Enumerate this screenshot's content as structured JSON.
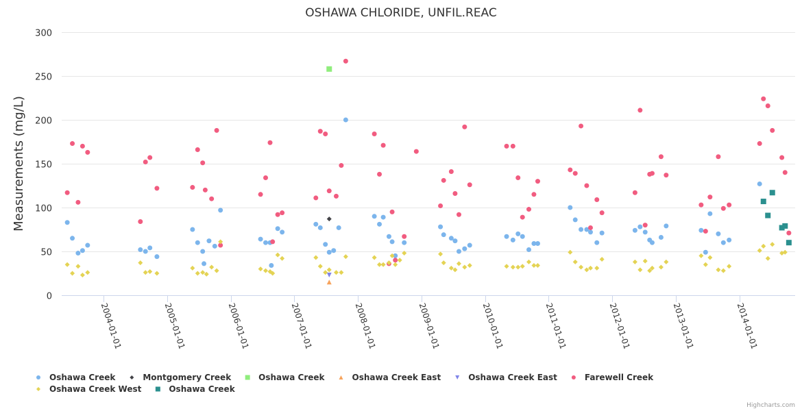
{
  "chart_data": {
    "type": "scatter",
    "title": "OSHAWA CHLORIDE, UNFIL.REAC",
    "xlabel": "",
    "ylabel": "Measurements (mg/L)",
    "ylim": [
      0,
      300
    ],
    "xlim": [
      2003.35,
      2014.9
    ],
    "yticks": [
      "0",
      "50",
      "100",
      "150",
      "200",
      "250",
      "300"
    ],
    "ytick_values": [
      0,
      50,
      100,
      150,
      200,
      250,
      300
    ],
    "xticks": [
      "2004-01-01",
      "2005-01-01",
      "2006-01-01",
      "2007-01-01",
      "2008-01-01",
      "2009-01-01",
      "2010-01-01",
      "2011-01-01",
      "2012-01-01",
      "2013-01-01",
      "2014-01-01"
    ],
    "xtick_values": [
      2004,
      2005,
      2006,
      2007,
      2008,
      2009,
      2010,
      2011,
      2012,
      2013,
      2014
    ],
    "grid": true,
    "legend_position": "bottom",
    "credits": "Highcharts.com",
    "series": [
      {
        "name": "Oshawa Creek",
        "color": "#7cb5ec",
        "marker": "circle",
        "points": [
          [
            2003.43,
            83
          ],
          [
            2003.51,
            65
          ],
          [
            2003.6,
            48
          ],
          [
            2003.67,
            51
          ],
          [
            2003.75,
            57
          ],
          [
            2004.58,
            52
          ],
          [
            2004.66,
            50
          ],
          [
            2004.73,
            54
          ],
          [
            2004.84,
            44
          ],
          [
            2005.4,
            75
          ],
          [
            2005.48,
            60
          ],
          [
            2005.56,
            50
          ],
          [
            2005.58,
            36
          ],
          [
            2005.66,
            62
          ],
          [
            2005.75,
            56
          ],
          [
            2005.84,
            97
          ],
          [
            2006.47,
            64
          ],
          [
            2006.55,
            60
          ],
          [
            2006.62,
            60
          ],
          [
            2006.64,
            34
          ],
          [
            2006.74,
            76
          ],
          [
            2006.81,
            72
          ],
          [
            2007.34,
            81
          ],
          [
            2007.41,
            77
          ],
          [
            2007.49,
            58
          ],
          [
            2007.55,
            49
          ],
          [
            2007.62,
            51
          ],
          [
            2007.7,
            77
          ],
          [
            2007.81,
            200
          ],
          [
            2008.26,
            90
          ],
          [
            2008.34,
            81
          ],
          [
            2008.4,
            89
          ],
          [
            2008.49,
            67
          ],
          [
            2008.54,
            61
          ],
          [
            2008.59,
            45
          ],
          [
            2008.73,
            60
          ],
          [
            2009.3,
            78
          ],
          [
            2009.35,
            69
          ],
          [
            2009.47,
            65
          ],
          [
            2009.53,
            62
          ],
          [
            2009.59,
            50
          ],
          [
            2009.68,
            53
          ],
          [
            2009.76,
            57
          ],
          [
            2010.34,
            67
          ],
          [
            2010.44,
            63
          ],
          [
            2010.52,
            70
          ],
          [
            2010.59,
            67
          ],
          [
            2010.69,
            52
          ],
          [
            2010.77,
            59
          ],
          [
            2010.83,
            59
          ],
          [
            2011.34,
            100
          ],
          [
            2011.42,
            86
          ],
          [
            2011.51,
            75
          ],
          [
            2011.6,
            75
          ],
          [
            2011.66,
            72
          ],
          [
            2011.76,
            60
          ],
          [
            2011.84,
            71
          ],
          [
            2012.36,
            74
          ],
          [
            2012.44,
            78
          ],
          [
            2012.52,
            72
          ],
          [
            2012.59,
            63
          ],
          [
            2012.63,
            60
          ],
          [
            2012.77,
            66
          ],
          [
            2012.85,
            79
          ],
          [
            2013.4,
            74
          ],
          [
            2013.47,
            49
          ],
          [
            2013.54,
            93
          ],
          [
            2013.67,
            70
          ],
          [
            2013.75,
            60
          ],
          [
            2013.84,
            63
          ],
          [
            2014.32,
            127
          ]
        ]
      },
      {
        "name": "Montgomery Creek",
        "color": "#434348",
        "marker": "diamond",
        "points": [
          [
            2007.55,
            87
          ]
        ]
      },
      {
        "name": "Oshawa Creek",
        "color": "#90ed7d",
        "marker": "square",
        "points": [
          [
            2007.55,
            258
          ]
        ]
      },
      {
        "name": "Oshawa Creek East",
        "color": "#f7a35c",
        "marker": "triangle",
        "points": [
          [
            2007.55,
            15
          ]
        ]
      },
      {
        "name": "Oshawa Creek East",
        "color": "#8085e9",
        "marker": "triangle-down",
        "points": [
          [
            2007.55,
            23
          ]
        ]
      },
      {
        "name": "Farewell Creek",
        "color": "#f15c80",
        "marker": "circle",
        "points": [
          [
            2003.43,
            117
          ],
          [
            2003.51,
            173
          ],
          [
            2003.6,
            106
          ],
          [
            2003.67,
            170
          ],
          [
            2003.75,
            163
          ],
          [
            2004.58,
            84
          ],
          [
            2004.66,
            152
          ],
          [
            2004.73,
            157
          ],
          [
            2004.84,
            122
          ],
          [
            2005.4,
            123
          ],
          [
            2005.48,
            166
          ],
          [
            2005.56,
            151
          ],
          [
            2005.6,
            120
          ],
          [
            2005.7,
            110
          ],
          [
            2005.78,
            188
          ],
          [
            2005.84,
            57
          ],
          [
            2006.47,
            115
          ],
          [
            2006.55,
            134
          ],
          [
            2006.62,
            174
          ],
          [
            2006.66,
            61
          ],
          [
            2006.74,
            92
          ],
          [
            2006.81,
            94
          ],
          [
            2007.34,
            111
          ],
          [
            2007.41,
            187
          ],
          [
            2007.49,
            184
          ],
          [
            2007.55,
            119
          ],
          [
            2007.66,
            113
          ],
          [
            2007.74,
            148
          ],
          [
            2007.81,
            267
          ],
          [
            2008.26,
            184
          ],
          [
            2008.34,
            138
          ],
          [
            2008.4,
            171
          ],
          [
            2008.49,
            36
          ],
          [
            2008.54,
            95
          ],
          [
            2008.59,
            40
          ],
          [
            2008.73,
            67
          ],
          [
            2008.92,
            164
          ],
          [
            2009.3,
            102
          ],
          [
            2009.35,
            131
          ],
          [
            2009.47,
            141
          ],
          [
            2009.53,
            116
          ],
          [
            2009.59,
            92
          ],
          [
            2009.68,
            192
          ],
          [
            2009.76,
            126
          ],
          [
            2010.34,
            170
          ],
          [
            2010.44,
            170
          ],
          [
            2010.52,
            134
          ],
          [
            2010.59,
            89
          ],
          [
            2010.69,
            98
          ],
          [
            2010.77,
            115
          ],
          [
            2010.83,
            130
          ],
          [
            2011.34,
            143
          ],
          [
            2011.42,
            139
          ],
          [
            2011.51,
            193
          ],
          [
            2011.6,
            125
          ],
          [
            2011.66,
            77
          ],
          [
            2011.76,
            109
          ],
          [
            2011.84,
            94
          ],
          [
            2012.36,
            117
          ],
          [
            2012.44,
            211
          ],
          [
            2012.52,
            80
          ],
          [
            2012.59,
            138
          ],
          [
            2012.63,
            139
          ],
          [
            2012.77,
            158
          ],
          [
            2012.85,
            137
          ],
          [
            2013.4,
            103
          ],
          [
            2013.47,
            73
          ],
          [
            2013.54,
            112
          ],
          [
            2013.67,
            158
          ],
          [
            2013.75,
            99
          ],
          [
            2013.84,
            103
          ],
          [
            2014.32,
            173
          ],
          [
            2014.38,
            224
          ],
          [
            2014.45,
            216
          ],
          [
            2014.52,
            188
          ],
          [
            2014.67,
            157
          ],
          [
            2014.72,
            140
          ],
          [
            2014.78,
            71
          ]
        ]
      },
      {
        "name": "Oshawa Creek West",
        "color": "#e4d354",
        "marker": "diamond",
        "points": [
          [
            2003.43,
            35
          ],
          [
            2003.51,
            25
          ],
          [
            2003.6,
            33
          ],
          [
            2003.67,
            23
          ],
          [
            2003.75,
            26
          ],
          [
            2004.58,
            37
          ],
          [
            2004.66,
            26
          ],
          [
            2004.73,
            27
          ],
          [
            2004.84,
            25
          ],
          [
            2005.4,
            31
          ],
          [
            2005.48,
            25
          ],
          [
            2005.56,
            26
          ],
          [
            2005.62,
            24
          ],
          [
            2005.7,
            32
          ],
          [
            2005.78,
            28
          ],
          [
            2005.84,
            61
          ],
          [
            2006.47,
            30
          ],
          [
            2006.55,
            28
          ],
          [
            2006.62,
            27
          ],
          [
            2006.66,
            25
          ],
          [
            2006.74,
            46
          ],
          [
            2006.81,
            42
          ],
          [
            2007.34,
            43
          ],
          [
            2007.41,
            33
          ],
          [
            2007.49,
            26
          ],
          [
            2007.55,
            29
          ],
          [
            2007.66,
            26
          ],
          [
            2007.74,
            26
          ],
          [
            2007.81,
            44
          ],
          [
            2008.26,
            43
          ],
          [
            2008.34,
            35
          ],
          [
            2008.4,
            35
          ],
          [
            2008.49,
            37
          ],
          [
            2008.54,
            45
          ],
          [
            2008.59,
            35
          ],
          [
            2008.66,
            40
          ],
          [
            2008.73,
            48
          ],
          [
            2009.3,
            47
          ],
          [
            2009.35,
            37
          ],
          [
            2009.47,
            31
          ],
          [
            2009.53,
            29
          ],
          [
            2009.59,
            36
          ],
          [
            2009.68,
            32
          ],
          [
            2009.76,
            34
          ],
          [
            2010.34,
            33
          ],
          [
            2010.44,
            32
          ],
          [
            2010.52,
            32
          ],
          [
            2010.59,
            33
          ],
          [
            2010.69,
            38
          ],
          [
            2010.77,
            34
          ],
          [
            2010.83,
            34
          ],
          [
            2011.34,
            49
          ],
          [
            2011.42,
            38
          ],
          [
            2011.51,
            32
          ],
          [
            2011.6,
            29
          ],
          [
            2011.66,
            31
          ],
          [
            2011.76,
            31
          ],
          [
            2011.84,
            41
          ],
          [
            2012.36,
            38
          ],
          [
            2012.44,
            29
          ],
          [
            2012.52,
            39
          ],
          [
            2012.59,
            28
          ],
          [
            2012.63,
            31
          ],
          [
            2012.77,
            32
          ],
          [
            2012.85,
            38
          ],
          [
            2013.4,
            45
          ],
          [
            2013.47,
            35
          ],
          [
            2013.54,
            43
          ],
          [
            2013.67,
            29
          ],
          [
            2013.75,
            28
          ],
          [
            2013.84,
            33
          ],
          [
            2014.32,
            51
          ],
          [
            2014.38,
            56
          ],
          [
            2014.45,
            42
          ],
          [
            2014.52,
            58
          ],
          [
            2014.67,
            48
          ],
          [
            2014.72,
            49
          ]
        ]
      },
      {
        "name": "Oshawa Creek",
        "color": "#2b908f",
        "marker": "square",
        "points": [
          [
            2014.38,
            107
          ],
          [
            2014.45,
            91
          ],
          [
            2014.52,
            117
          ],
          [
            2014.67,
            77
          ],
          [
            2014.72,
            79
          ],
          [
            2014.78,
            60
          ]
        ]
      }
    ]
  }
}
